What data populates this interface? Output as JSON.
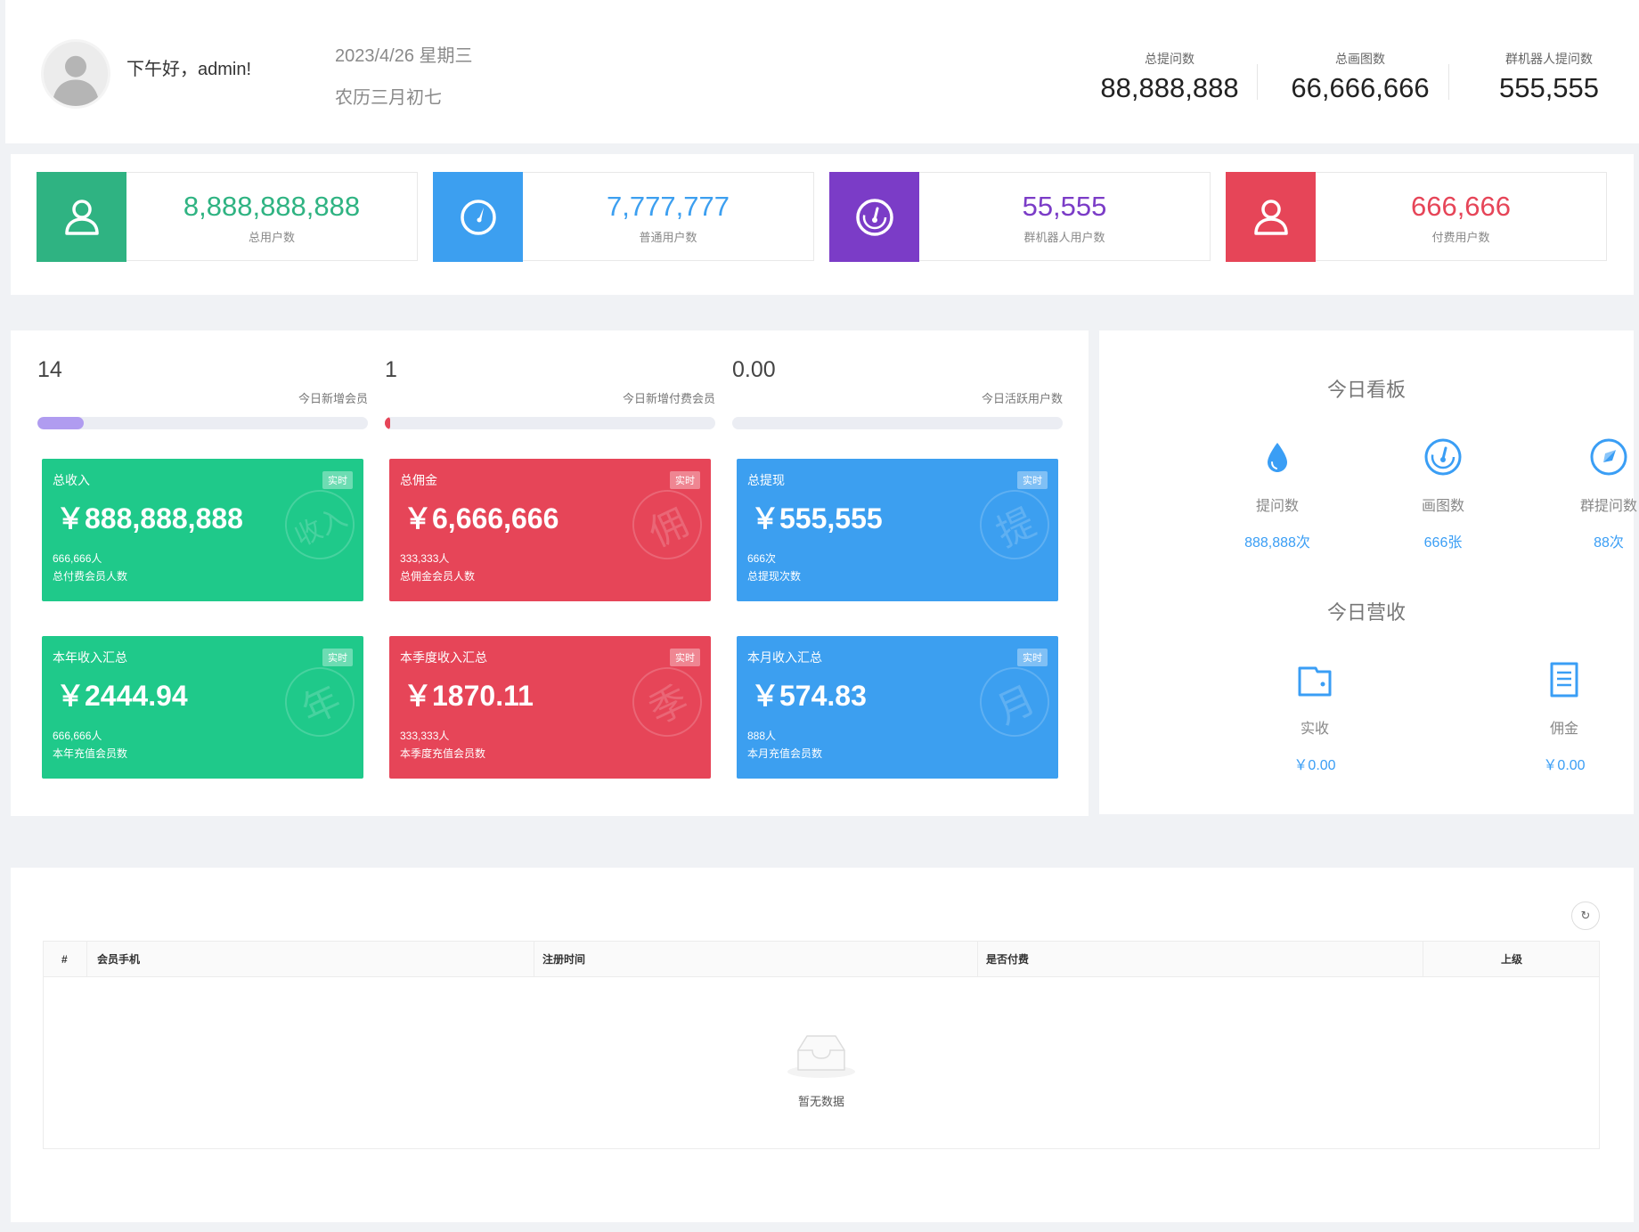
{
  "header": {
    "greeting": "下午好，admin!",
    "date": "2023/4/26 星期三",
    "lunar": "农历三月初七",
    "stats": [
      {
        "label": "总提问数",
        "value": "88,888,888"
      },
      {
        "label": "总画图数",
        "value": "66,666,666"
      },
      {
        "label": "群机器人提问数",
        "value": "555,555"
      }
    ]
  },
  "user_stats": [
    {
      "value": "8,888,888,888",
      "label": "总用户数",
      "color": "#2fb382",
      "icon": "user-icon"
    },
    {
      "value": "7,777,777",
      "label": "普通用户数",
      "color": "#3c9ff0",
      "icon": "compass-icon"
    },
    {
      "value": "55,555",
      "label": "群机器人用户数",
      "color": "#7b3cc7",
      "icon": "speedometer-icon"
    },
    {
      "value": "666,666",
      "label": "付费用户数",
      "color": "#e64558",
      "icon": "user-icon"
    }
  ],
  "progress": [
    {
      "value": "14",
      "label": "今日新增会员",
      "percent": 14,
      "color": "#b09cf0"
    },
    {
      "value": "1",
      "label": "今日新增付费会员",
      "percent": 1,
      "color": "#e64558"
    },
    {
      "value": "0.00",
      "label": "今日活跃用户数",
      "percent": 0,
      "color": "#3c9ff0"
    }
  ],
  "revenue_cards": [
    {
      "title": "总收入",
      "tag": "实时",
      "value": "￥888,888,888",
      "count": "666,666人",
      "desc": "总付费会员人数",
      "watermark": "收入",
      "color": "#1fc98a"
    },
    {
      "title": "总佣金",
      "tag": "实时",
      "value": "￥6,666,666",
      "count": "333,333人",
      "desc": "总佣金会员人数",
      "watermark": "佣",
      "color": "#e64558"
    },
    {
      "title": "总提现",
      "tag": "实时",
      "value": "￥555,555",
      "count": "666次",
      "desc": "总提现次数",
      "watermark": "提",
      "color": "#3c9ff0"
    },
    {
      "title": "本年收入汇总",
      "tag": "实时",
      "value": "￥2444.94",
      "count": "666,666人",
      "desc": "本年充值会员数",
      "watermark": "年",
      "color": "#1fc98a"
    },
    {
      "title": "本季度收入汇总",
      "tag": "实时",
      "value": "￥1870.11",
      "count": "333,333人",
      "desc": "本季度充值会员数",
      "watermark": "季",
      "color": "#e64558"
    },
    {
      "title": "本月收入汇总",
      "tag": "实时",
      "value": "￥574.83",
      "count": "888人",
      "desc": "本月充值会员数",
      "watermark": "月",
      "color": "#3c9ff0"
    }
  ],
  "today_board": {
    "title": "今日看板",
    "items": [
      {
        "label": "提问数",
        "value": "888,888次",
        "icon": "water-drop-icon"
      },
      {
        "label": "画图数",
        "value": "666张",
        "icon": "speedometer-icon"
      },
      {
        "label": "群提问数",
        "value": "88次",
        "icon": "compass-icon"
      }
    ]
  },
  "today_revenue": {
    "title": "今日营收",
    "items": [
      {
        "label": "实收",
        "value": "￥0.00",
        "icon": "wallet-icon"
      },
      {
        "label": "佣金",
        "value": "￥0.00",
        "icon": "document-icon"
      }
    ]
  },
  "table": {
    "refresh_icon": "refresh-icon",
    "columns": [
      "#",
      "会员手机",
      "注册时间",
      "是否付费",
      "上级"
    ],
    "empty_text": "暂无数据"
  }
}
